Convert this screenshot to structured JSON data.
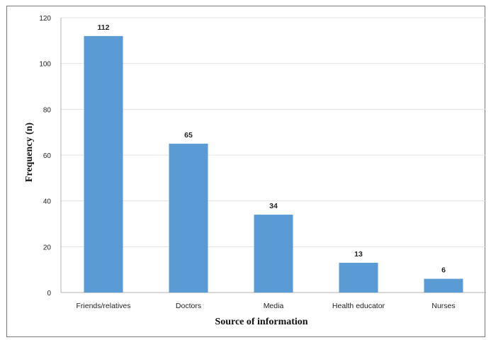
{
  "chart_data": {
    "type": "bar",
    "title": "",
    "xlabel": "Source of information",
    "ylabel": "Frequency  (n)",
    "categories": [
      "Friends/relatives",
      "Doctors",
      "Media",
      "Health educator",
      "Nurses"
    ],
    "values": [
      112,
      65,
      34,
      13,
      6
    ],
    "data_labels": [
      "112",
      "65",
      "34",
      "13",
      "6"
    ],
    "ylim": [
      0,
      120
    ],
    "yticks": [
      "0",
      "20",
      "40",
      "60",
      "80",
      "100",
      "120"
    ],
    "grid": true,
    "legend": "none",
    "bar_color": "#5b9bd5"
  }
}
